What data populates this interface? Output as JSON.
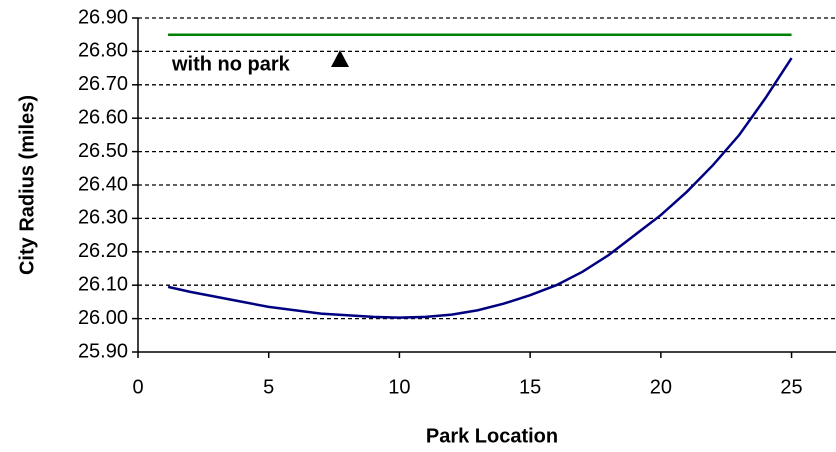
{
  "chart_data": {
    "type": "line",
    "x_label": "Park Location",
    "y_label": "City Radius (miles)",
    "annotation": "with no park",
    "xlim": [
      0,
      26.7
    ],
    "xticks": [
      0,
      5,
      10,
      15,
      20,
      25
    ],
    "ylim": [
      25.9,
      26.9
    ],
    "yticks": [
      {
        "value": 25.9,
        "label": "25.90"
      },
      {
        "value": 26.0,
        "label": "26.00"
      },
      {
        "value": 26.1,
        "label": "26.10"
      },
      {
        "value": 26.2,
        "label": "26.20"
      },
      {
        "value": 26.3,
        "label": "26.30"
      },
      {
        "value": 26.4,
        "label": "26.40"
      },
      {
        "value": 26.5,
        "label": "26.50"
      },
      {
        "value": 26.6,
        "label": "26.60"
      },
      {
        "value": 26.7,
        "label": "26.70"
      },
      {
        "value": 26.8,
        "label": "26.80"
      },
      {
        "value": 26.9,
        "label": "26.90"
      }
    ],
    "grid": true,
    "series": [
      {
        "color": "#008000",
        "x": [
          1.15,
          25
        ],
        "values": [
          26.85,
          26.85
        ]
      },
      {
        "color": "#000080",
        "x": [
          1.15,
          2,
          3,
          4,
          5,
          6,
          7,
          8,
          9,
          10,
          11,
          12,
          13,
          14,
          15,
          16,
          17,
          18,
          19,
          20,
          21,
          22,
          23,
          24,
          25
        ],
        "values": [
          26.095,
          26.08,
          26.065,
          26.05,
          26.035,
          26.025,
          26.015,
          26.01,
          26.005,
          26.003,
          26.005,
          26.012,
          26.025,
          26.045,
          26.07,
          26.1,
          26.14,
          26.19,
          26.25,
          26.31,
          26.38,
          26.46,
          26.55,
          26.66,
          26.78
        ]
      }
    ]
  }
}
